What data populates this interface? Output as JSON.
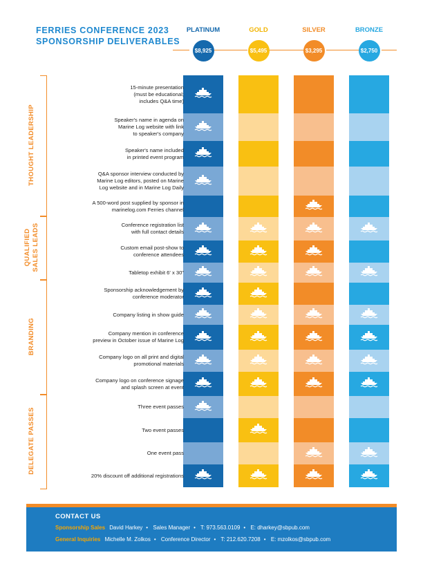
{
  "title": {
    "line1": "FERRIES CONFERENCE 2023",
    "line2": "SPONSORSHIP DELIVERABLES"
  },
  "tiers": [
    {
      "name": "PLATINUM",
      "price": "$8,925",
      "color": "#1569ad",
      "light": "#7aa8d5",
      "name_color": "#1569ad"
    },
    {
      "name": "GOLD",
      "price": "$5,495",
      "color": "#f9c012",
      "light": "#fdd998",
      "name_color": "#f2b400"
    },
    {
      "name": "SILVER",
      "price": "$3,295",
      "color": "#f28c28",
      "light": "#f8bf8e",
      "name_color": "#f28c28"
    },
    {
      "name": "BRONZE",
      "price": "$2,750",
      "color": "#27a8e1",
      "light": "#a9d3f0",
      "name_color": "#27a8e1"
    }
  ],
  "sections": [
    {
      "label": "THOUGHT LEADERSHIP"
    },
    {
      "label": "QUALIFIED SALES LEADS",
      "line1": "QUALIFIED",
      "line2": "SALES LEADS"
    },
    {
      "label": "BRANDING"
    },
    {
      "label": "DELEGATE PASSES"
    }
  ],
  "rows": [
    {
      "lines": [
        "15-minute presentation",
        "(must be educational;",
        "includes Q&A time)"
      ],
      "included": [
        true,
        false,
        false,
        false
      ]
    },
    {
      "lines": [
        "Speaker's name in agenda on",
        "Marine Log website with link",
        "to speaker's company"
      ],
      "included": [
        true,
        false,
        false,
        false
      ]
    },
    {
      "lines": [
        "Speaker's name included",
        "in printed event program"
      ],
      "included": [
        true,
        false,
        false,
        false
      ]
    },
    {
      "lines": [
        "Q&A sponsor interview conducted by",
        "Marine Log editors, posted on Marine",
        "Log website and in Marine Log Daily"
      ],
      "included": [
        true,
        false,
        false,
        false
      ]
    },
    {
      "lines": [
        "A 500-word post supplied by sponsor in",
        "marinelog.com Ferries channel"
      ],
      "included": [
        false,
        false,
        true,
        false
      ]
    },
    {
      "lines": [
        "Conference registration list",
        "with full contact details"
      ],
      "included": [
        true,
        true,
        true,
        true
      ]
    },
    {
      "lines": [
        "Custom email post-show to",
        "conference attendees"
      ],
      "included": [
        true,
        true,
        true,
        false
      ]
    },
    {
      "lines": [
        "Tabletop exhibit 6' x 30\""
      ],
      "included": [
        true,
        true,
        true,
        true
      ]
    },
    {
      "lines": [
        "Sponsorship acknowledgement by",
        "conference moderator"
      ],
      "included": [
        true,
        true,
        false,
        false
      ]
    },
    {
      "lines": [
        "Company listing in show guide"
      ],
      "included": [
        true,
        true,
        true,
        true
      ]
    },
    {
      "lines": [
        "Company mention in conference",
        "preview in October issue of Marine Log"
      ],
      "included": [
        true,
        true,
        true,
        true
      ]
    },
    {
      "lines": [
        "Company logo on all print and digital",
        "promotional materials"
      ],
      "included": [
        true,
        true,
        true,
        true
      ]
    },
    {
      "lines": [
        "Company logo on conference signage",
        "and splash screen at event"
      ],
      "included": [
        true,
        true,
        true,
        true
      ]
    },
    {
      "lines": [
        "Three event passes"
      ],
      "included": [
        true,
        false,
        false,
        false
      ]
    },
    {
      "lines": [
        "Two event passes"
      ],
      "included": [
        false,
        true,
        false,
        false
      ]
    },
    {
      "lines": [
        "One event pass"
      ],
      "included": [
        false,
        false,
        true,
        true
      ]
    },
    {
      "lines": [
        "20% discount off additional registrations"
      ],
      "included": [
        true,
        true,
        true,
        true
      ]
    }
  ],
  "footer": {
    "heading": "CONTACT US",
    "contacts": [
      {
        "label": "Sponsorship Sales",
        "name": "David Harkey",
        "role": "Sales Manager",
        "phone": "T: 973.563.0109",
        "email": "E: dharkey@sbpub.com"
      },
      {
        "label": "General Inquiries",
        "name": "Michelle M. Zolkos",
        "role": "Conference Director",
        "phone": "T: 212.620.7208",
        "email": "E: mzolkos@sbpub.com"
      }
    ]
  },
  "icon": "ferry-icon",
  "colors": {
    "accent": "#f28c28",
    "title_blue": "#1e88cf",
    "footer_bg": "#1e7cc1",
    "footer_label": "#f7a600"
  }
}
